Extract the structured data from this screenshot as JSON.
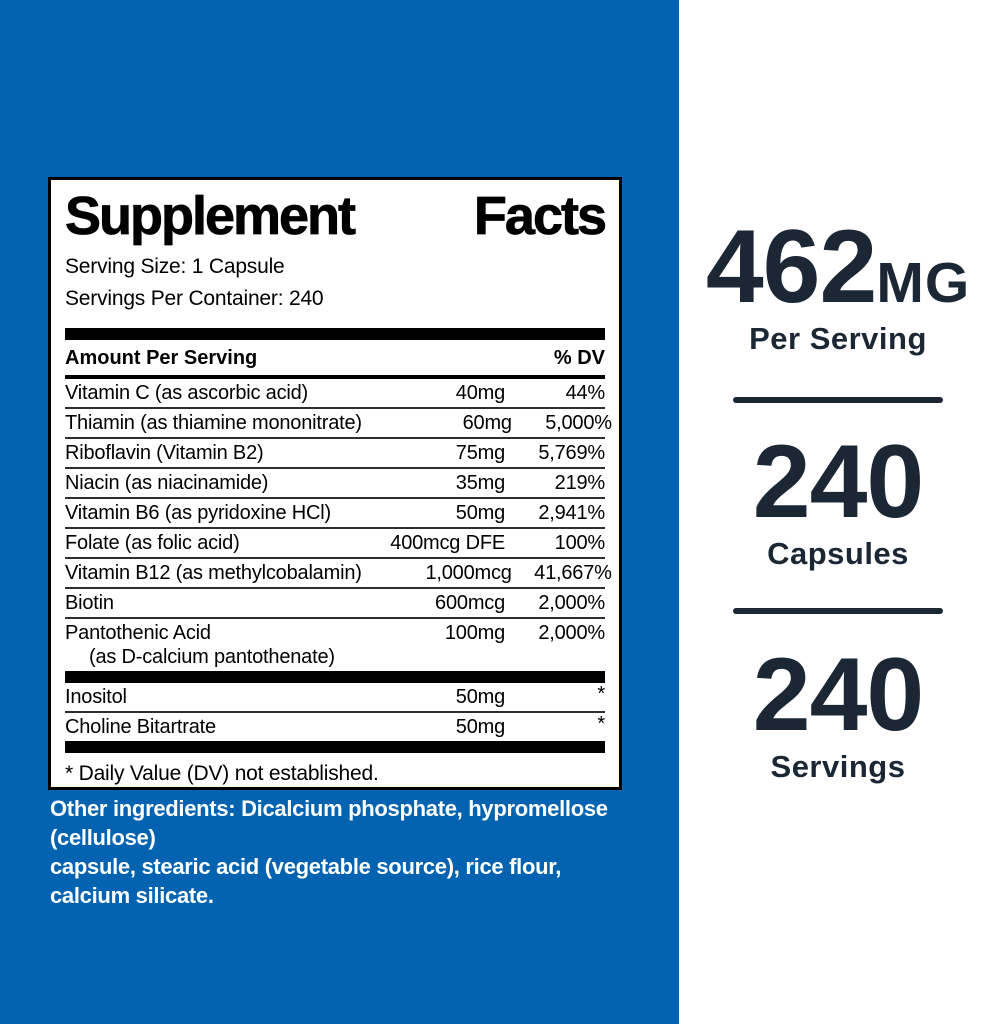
{
  "colors": {
    "background_blue": "#0463b0",
    "accent_navy": "#1b2735",
    "label_text": "#000000"
  },
  "label": {
    "title_word1": "Supplement",
    "title_word2": "Facts",
    "serving_size": "Serving Size: 1 Capsule",
    "servings_per_container": "Servings Per Container: 240",
    "columns": {
      "amount_header": "Amount Per Serving",
      "dv_header": "% DV"
    },
    "rows": [
      {
        "name": "Vitamin C (as ascorbic acid)",
        "amount": "40mg",
        "dv": "44%"
      },
      {
        "name": "Thiamin (as thiamine mononitrate)",
        "amount": "60mg",
        "dv": "5,000%"
      },
      {
        "name": "Riboflavin (Vitamin B2)",
        "amount": "75mg",
        "dv": "5,769%"
      },
      {
        "name": "Niacin (as niacinamide)",
        "amount": "35mg",
        "dv": "219%"
      },
      {
        "name": "Vitamin B6 (as pyridoxine HCl)",
        "amount": "50mg",
        "dv": "2,941%"
      },
      {
        "name": "Folate (as folic acid)",
        "amount": "400mcg DFE",
        "dv": "100%"
      },
      {
        "name": "Vitamin B12 (as methylcobalamin)",
        "amount": "1,000mcg",
        "dv": "41,667%"
      },
      {
        "name": "Biotin",
        "amount": "600mcg",
        "dv": "2,000%"
      },
      {
        "name": "Pantothenic Acid",
        "name2": "(as D-calcium pantothenate)",
        "amount": "100mg",
        "dv": "2,000%"
      }
    ],
    "secondary_rows": [
      {
        "name": "Inositol",
        "amount": "50mg",
        "dv": "*"
      },
      {
        "name": "Choline Bitartrate",
        "amount": "50mg",
        "dv": "*"
      }
    ],
    "footnote": "* Daily Value (DV) not established.",
    "other_ingredients_line1": "Other ingredients: Dicalcium phosphate, hypromellose (cellulose)",
    "other_ingredients_line2": "capsule, stearic acid (vegetable source), rice flour, calcium silicate."
  },
  "stats": [
    {
      "value": "462",
      "unit": "MG",
      "label": "Per Serving"
    },
    {
      "value": "240",
      "unit": "",
      "label": "Capsules"
    },
    {
      "value": "240",
      "unit": "",
      "label": "Servings"
    }
  ]
}
